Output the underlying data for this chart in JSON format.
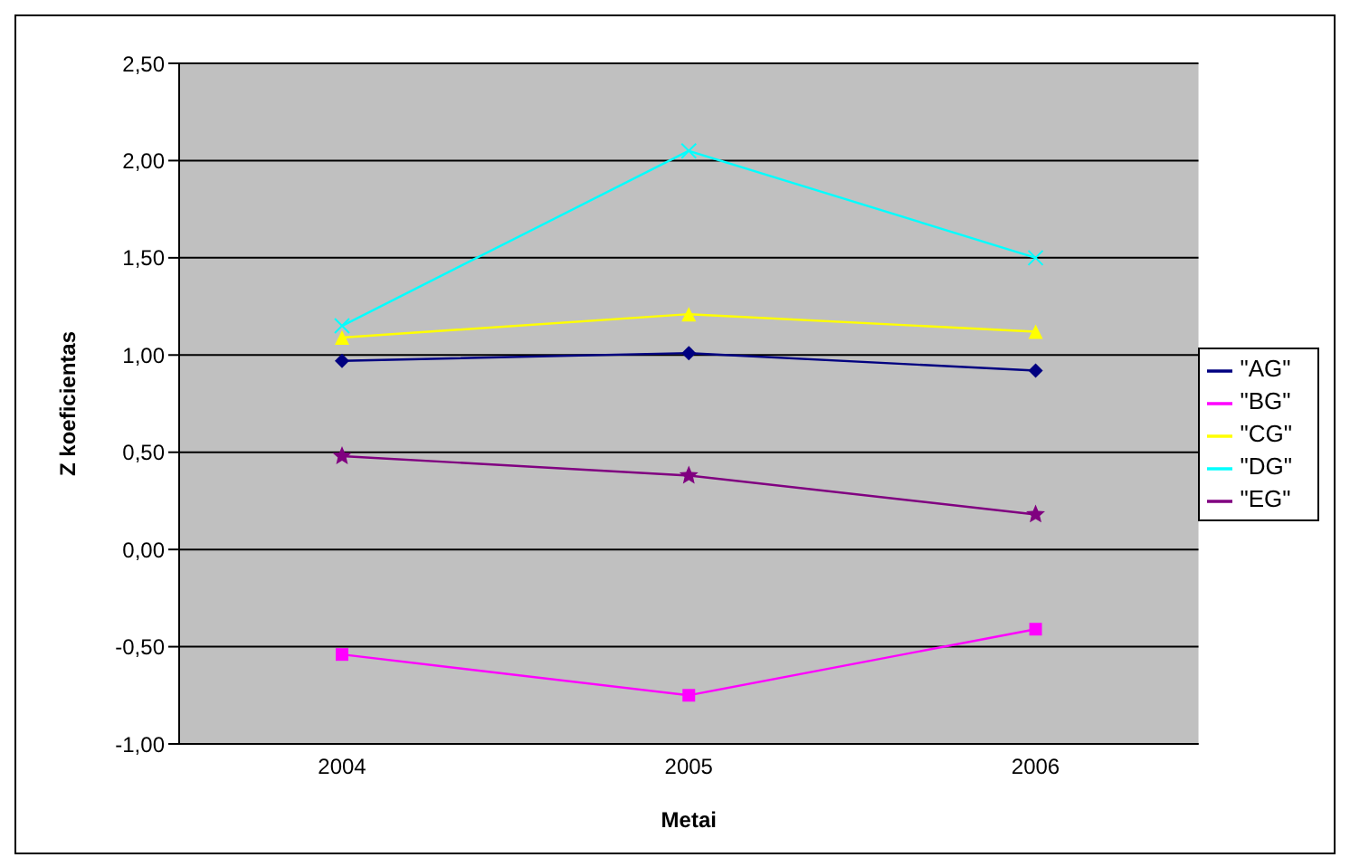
{
  "chart_data": {
    "type": "line",
    "xlabel": "Metai",
    "ylabel": "Z koeficientas",
    "categories": [
      "2004",
      "2005",
      "2006"
    ],
    "series": [
      {
        "name": "\"AG\"",
        "color": "#000080",
        "marker": "diamond",
        "values": [
          0.97,
          1.01,
          0.92
        ]
      },
      {
        "name": "\"BG\"",
        "color": "#ff00ff",
        "marker": "square",
        "values": [
          -0.54,
          -0.75,
          -0.41
        ]
      },
      {
        "name": "\"CG\"",
        "color": "#ffff00",
        "marker": "triangle",
        "values": [
          1.09,
          1.21,
          1.12
        ]
      },
      {
        "name": "\"DG\"",
        "color": "#00ffff",
        "marker": "cross",
        "values": [
          1.15,
          2.05,
          1.5
        ]
      },
      {
        "name": "\"EG\"",
        "color": "#800080",
        "marker": "star",
        "values": [
          0.48,
          0.38,
          0.18
        ]
      }
    ],
    "ylim": [
      -1,
      2.5
    ],
    "yticks": [
      {
        "value": -1,
        "label": "-1,00"
      },
      {
        "value": -0.5,
        "label": "-0,50"
      },
      {
        "value": 0,
        "label": "0,00"
      },
      {
        "value": 0.5,
        "label": "0,50"
      },
      {
        "value": 1,
        "label": "1,00"
      },
      {
        "value": 1.5,
        "label": "1,50"
      },
      {
        "value": 2,
        "label": "2,00"
      },
      {
        "value": 2.5,
        "label": "2,50"
      }
    ],
    "grid": "y",
    "legend": "right"
  }
}
